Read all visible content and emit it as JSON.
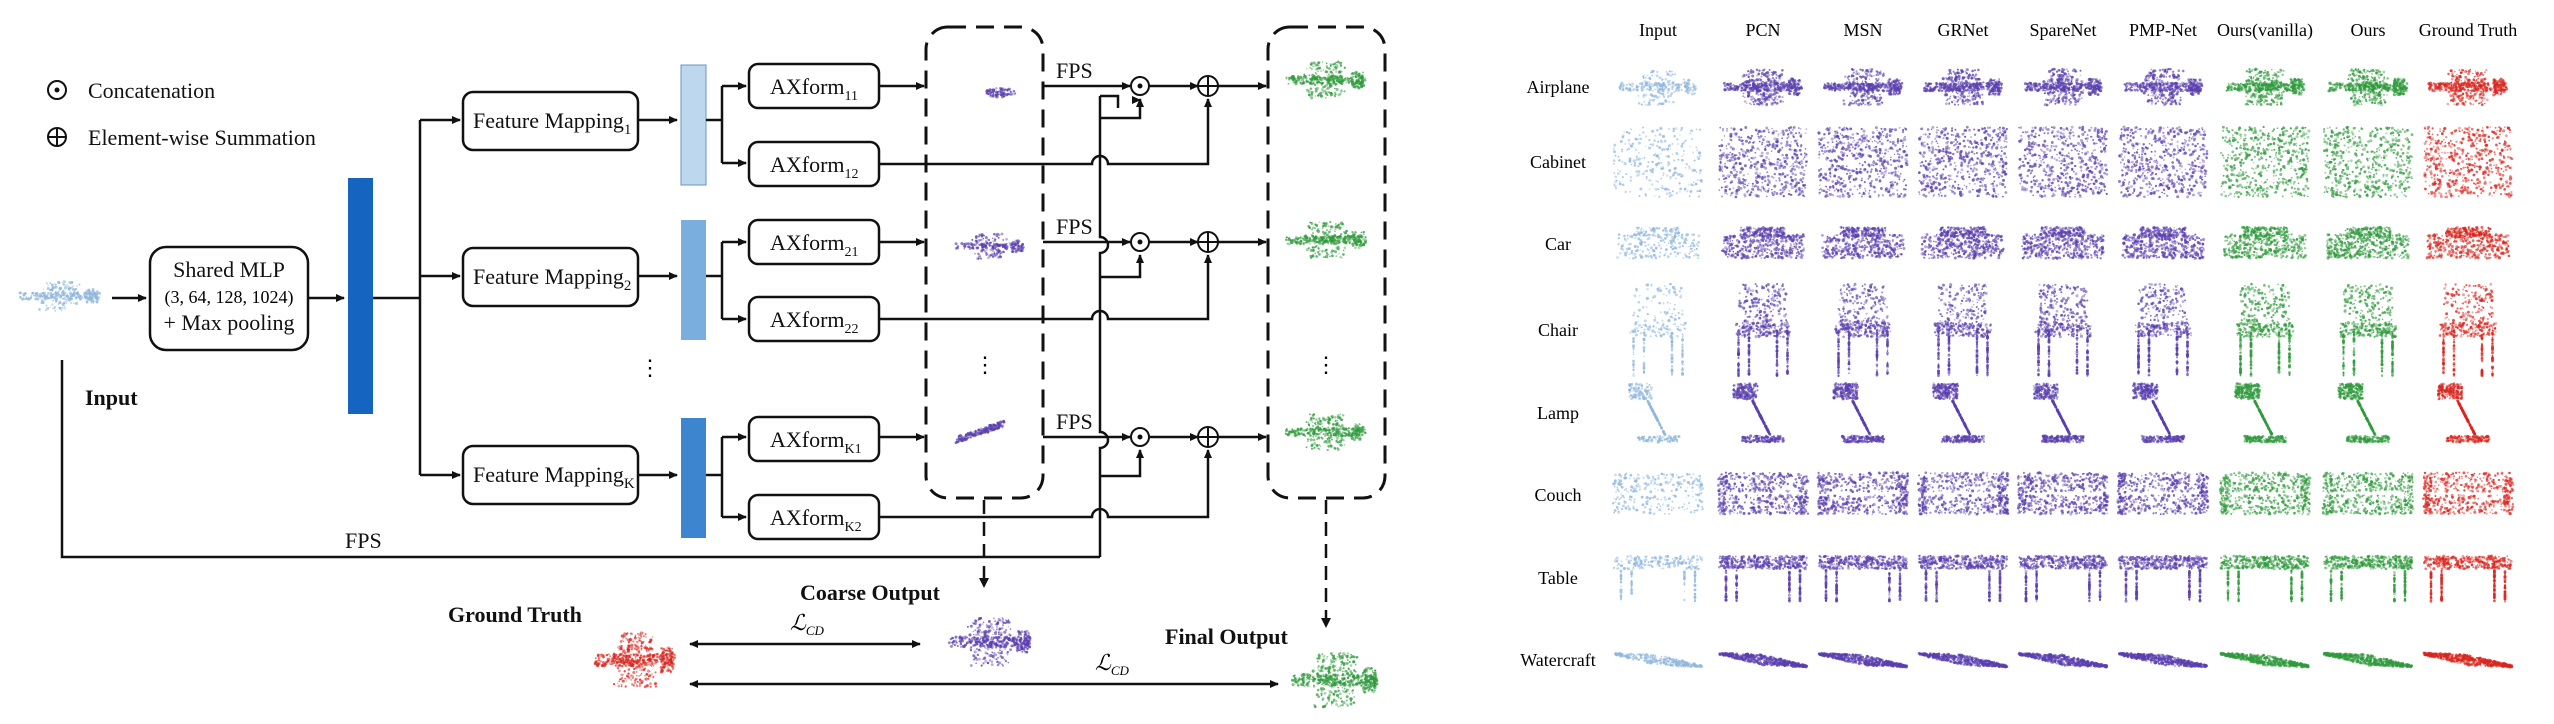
{
  "legend": {
    "concat_label": "Concatenation",
    "sum_label": "Element-wise Summation"
  },
  "diagram": {
    "input_label": "Input",
    "mlp_line1": "Shared MLP",
    "mlp_line2": "(3, 64, 128, 1024)",
    "mlp_line3": "+ Max pooling",
    "feature_mapping": "Feature Mapping",
    "fm_subs": [
      "1",
      "2",
      "K"
    ],
    "axform": "AXform",
    "ax_subs": [
      "11",
      "12",
      "21",
      "22",
      "K1",
      "K2"
    ],
    "fps": "FPS",
    "ellipsis": "⋮",
    "coarse_output": "Coarse Output",
    "final_output": "Final Output",
    "ground_truth": "Ground Truth",
    "loss": "ℒ",
    "loss_sub": "CD"
  },
  "grid": {
    "columns": [
      "Input",
      "PCN",
      "MSN",
      "GRNet",
      "SpareNet",
      "PMP-Net",
      "Ours(vanilla)",
      "Ours",
      "Ground Truth"
    ],
    "rows": [
      "Airplane",
      "Cabinet",
      "Car",
      "Chair",
      "Lamp",
      "Couch",
      "Table",
      "Watercraft"
    ]
  },
  "colors": {
    "input_cloud": "#8fb6dc",
    "purple_cloud": "#5a3fae",
    "green_cloud": "#2f9a3c",
    "red_cloud": "#d8261e",
    "bar_dark": "#1565c0",
    "bar_light1": "#bcd7ee",
    "bar_light2": "#7aaede",
    "bar_light3": "#3d86cf"
  }
}
